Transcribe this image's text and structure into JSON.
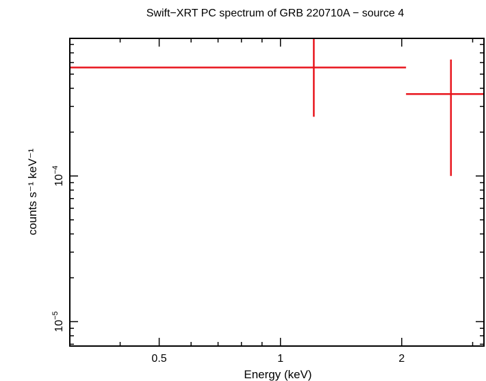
{
  "chart_data": {
    "type": "scatter",
    "title": "Swift−XRT PC spectrum of GRB 220710A − source 4",
    "xlabel": "Energy (keV)",
    "ylabel": "counts s⁻¹ keV⁻¹",
    "x_scale": "log",
    "y_scale": "log",
    "xlim": [
      0.3,
      3.2
    ],
    "ylim": [
      6.8e-06,
      0.00088
    ],
    "x_ticks": [
      {
        "value": 0.5,
        "label": "0.5"
      },
      {
        "value": 1,
        "label": "1"
      },
      {
        "value": 2,
        "label": "2"
      }
    ],
    "y_ticks": [
      {
        "value": 1e-05,
        "base": "10",
        "exp": "−5"
      },
      {
        "value": 0.0001,
        "base": "10",
        "exp": "−4"
      }
    ],
    "grid": false,
    "color": "#e8141c",
    "series": [
      {
        "points": [
          {
            "x": 1.21,
            "x_low": 0.3,
            "x_high": 2.05,
            "y": 0.000555,
            "y_low": 0.000255,
            "y_high": 0.00088
          },
          {
            "x": 2.65,
            "x_low": 2.05,
            "x_high": 3.2,
            "y": 0.000365,
            "y_low": 0.0001,
            "y_high": 0.00063
          }
        ]
      }
    ]
  }
}
